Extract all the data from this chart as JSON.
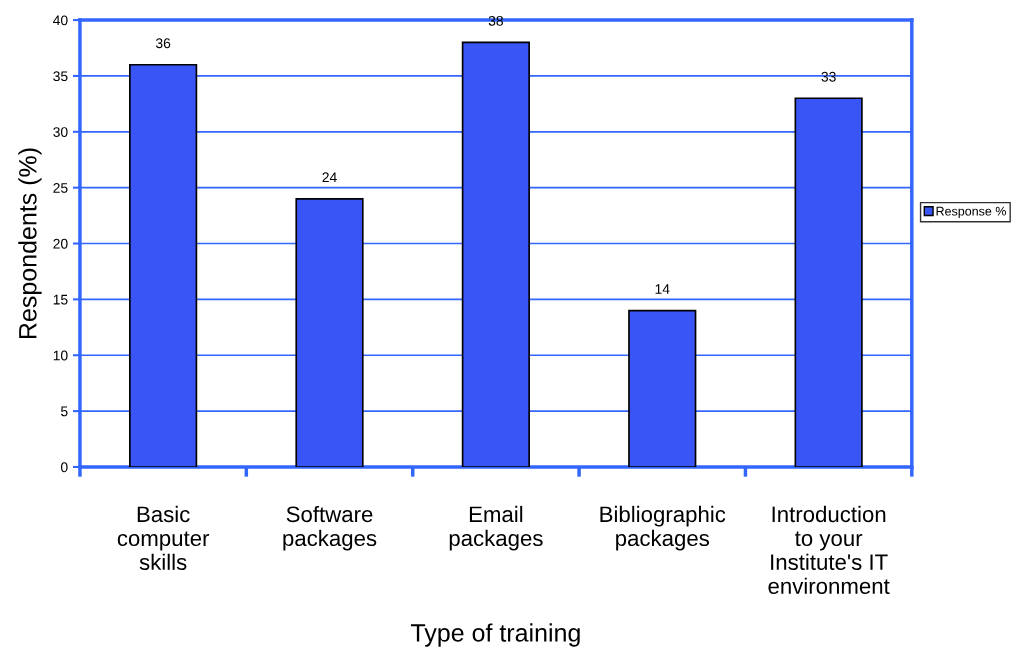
{
  "chart_data": {
    "type": "bar",
    "xlabel": "Type of training",
    "ylabel": "Respondents (%)",
    "categories": [
      "Basic\ncomputer\nskills",
      "Software\npackages",
      "Email\npackages",
      "Bibliographic\npackages",
      "Introduction\nto your\nInstitute's IT\nenvironment"
    ],
    "series": [
      {
        "name": "Response %",
        "color": "#3a55f5",
        "values": [
          36,
          24,
          38,
          14,
          33
        ]
      }
    ],
    "ylim": [
      0,
      40
    ],
    "yticks": [
      0,
      5,
      10,
      15,
      20,
      25,
      30,
      35,
      40
    ],
    "grid": "y",
    "legend": "right",
    "data_labels": true
  }
}
